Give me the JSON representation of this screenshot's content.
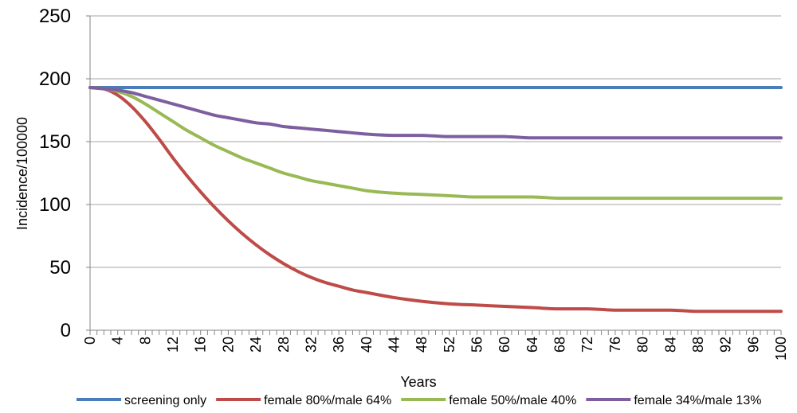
{
  "chart_data": {
    "type": "line",
    "title": "",
    "xlabel": "Years",
    "ylabel": "Incidence/100000",
    "xlim": [
      0,
      100
    ],
    "ylim": [
      0,
      250
    ],
    "y_ticks": [
      0,
      50,
      100,
      150,
      200,
      250
    ],
    "x_tick_labels": [
      0,
      4,
      8,
      12,
      16,
      20,
      24,
      28,
      32,
      36,
      40,
      44,
      48,
      52,
      56,
      60,
      64,
      68,
      72,
      76,
      80,
      84,
      88,
      92,
      96,
      100
    ],
    "grid": "horizontal",
    "legend_position": "bottom",
    "x": [
      0,
      2,
      4,
      6,
      8,
      10,
      12,
      14,
      16,
      18,
      20,
      22,
      24,
      26,
      28,
      30,
      32,
      34,
      36,
      38,
      40,
      44,
      48,
      52,
      56,
      60,
      64,
      68,
      72,
      76,
      80,
      84,
      88,
      92,
      96,
      100
    ],
    "series": [
      {
        "name": "screening only",
        "color": "#4a7ebb",
        "values": [
          193,
          193,
          193,
          193,
          193,
          193,
          193,
          193,
          193,
          193,
          193,
          193,
          193,
          193,
          193,
          193,
          193,
          193,
          193,
          193,
          193,
          193,
          193,
          193,
          193,
          193,
          193,
          193,
          193,
          193,
          193,
          193,
          193,
          193,
          193,
          193
        ]
      },
      {
        "name": "female 80%/male 64%",
        "color": "#be4b48",
        "values": [
          193,
          192,
          187,
          178,
          166,
          152,
          137,
          123,
          110,
          98,
          87,
          77,
          68,
          60,
          53,
          47,
          42,
          38,
          35,
          32,
          30,
          26,
          23,
          21,
          20,
          19,
          18,
          17,
          17,
          16,
          16,
          16,
          15,
          15,
          15,
          15
        ]
      },
      {
        "name": "female 50%/male 40%",
        "color": "#98b954",
        "values": [
          193,
          192,
          190,
          186,
          180,
          173,
          166,
          159,
          153,
          147,
          142,
          137,
          133,
          129,
          125,
          122,
          119,
          117,
          115,
          113,
          111,
          109,
          108,
          107,
          106,
          106,
          106,
          105,
          105,
          105,
          105,
          105,
          105,
          105,
          105,
          105
        ]
      },
      {
        "name": "female 34%/male 13%",
        "color": "#7d5fa0",
        "values": [
          193,
          192,
          191,
          189,
          186,
          183,
          180,
          177,
          174,
          171,
          169,
          167,
          165,
          164,
          162,
          161,
          160,
          159,
          158,
          157,
          156,
          155,
          155,
          154,
          154,
          154,
          153,
          153,
          153,
          153,
          153,
          153,
          153,
          153,
          153,
          153
        ]
      }
    ]
  }
}
